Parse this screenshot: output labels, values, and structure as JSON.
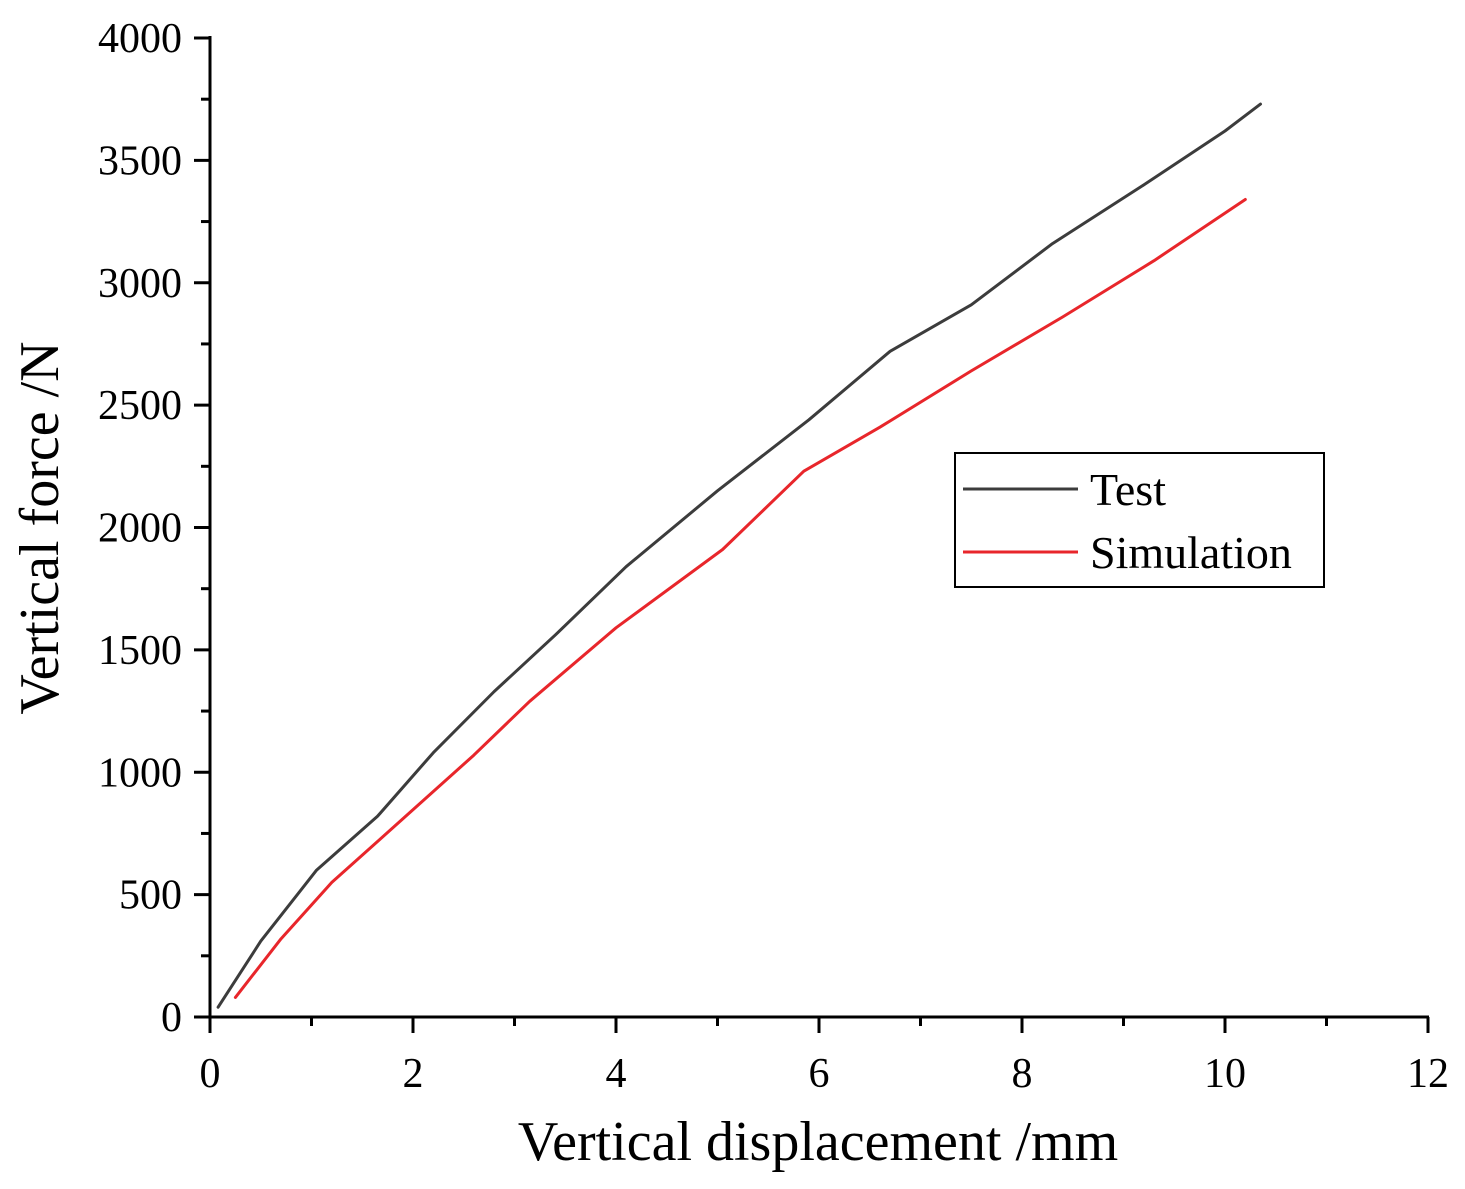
{
  "chart_data": {
    "type": "line",
    "title": "",
    "xlabel": "Vertical displacement /mm",
    "ylabel": "Vertical force /N",
    "xlim": [
      0,
      12
    ],
    "ylim": [
      0,
      4000
    ],
    "x_ticks": [
      0,
      2,
      4,
      6,
      8,
      10,
      12
    ],
    "x_tick_labels": [
      "0",
      "2",
      "4",
      "6",
      "8",
      "10",
      "12"
    ],
    "y_ticks": [
      0,
      500,
      1000,
      1500,
      2000,
      2500,
      3000,
      3500,
      4000
    ],
    "y_tick_labels": [
      "0",
      "500",
      "1000",
      "1500",
      "2000",
      "2500",
      "3000",
      "3500",
      "4000"
    ],
    "grid": false,
    "legend_position": "center-right",
    "series": [
      {
        "name": "Test",
        "color": "#3c3c3c",
        "x": [
          0.08,
          0.5,
          1.05,
          1.65,
          2.2,
          2.8,
          3.4,
          4.1,
          5.0,
          5.9,
          6.7,
          7.5,
          8.3,
          9.2,
          10.0,
          10.35
        ],
        "y": [
          40,
          310,
          600,
          820,
          1080,
          1330,
          1560,
          1840,
          2150,
          2440,
          2720,
          2910,
          3160,
          3400,
          3620,
          3730
        ]
      },
      {
        "name": "Simulation",
        "color": "#e8262b",
        "x": [
          0.25,
          0.7,
          1.2,
          1.9,
          2.6,
          3.15,
          4.0,
          5.05,
          5.85,
          6.6,
          7.5,
          8.4,
          9.3,
          10.2
        ],
        "y": [
          80,
          320,
          550,
          810,
          1070,
          1290,
          1590,
          1910,
          2230,
          2410,
          2640,
          2860,
          3090,
          3340
        ]
      }
    ]
  }
}
